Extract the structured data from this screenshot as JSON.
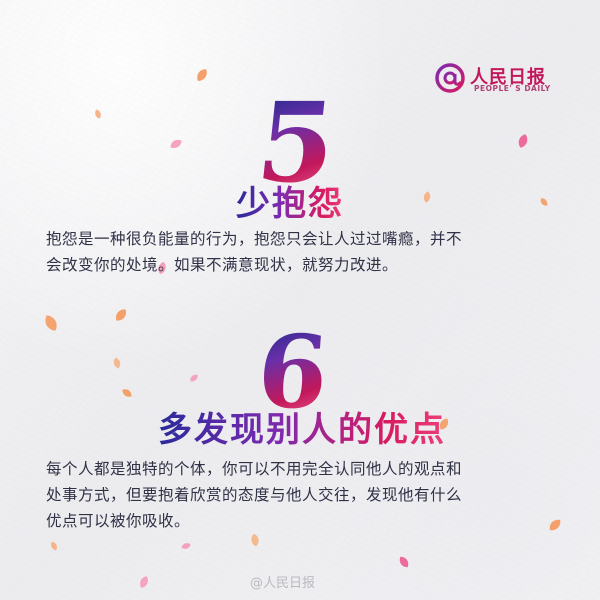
{
  "logo": {
    "mark": "@",
    "name_cn": "人民日报",
    "name_en": "PEOPLE' S DAILY"
  },
  "sections": [
    {
      "number": "5",
      "heading": "少抱怨",
      "lines": [
        "抱怨是一种很负能量的行为，抱怨只会让人过过嘴瘾，并不",
        "会改变你的处境。如果不满意现状，就努力改进。"
      ]
    },
    {
      "number": "6",
      "heading": "多发现别人的优点",
      "lines": [
        "每个人都是独特的个体，你可以不用完全认同他人的观点和",
        "处事方式，但要抱着欣赏的态度与他人交往，发现他有什么",
        "优点可以被你吸收。"
      ]
    }
  ],
  "watermark": "@人民日报",
  "colors": {
    "brand": "#c2185b",
    "accent_purple": "#6a2fa8",
    "text": "#2f3145"
  }
}
